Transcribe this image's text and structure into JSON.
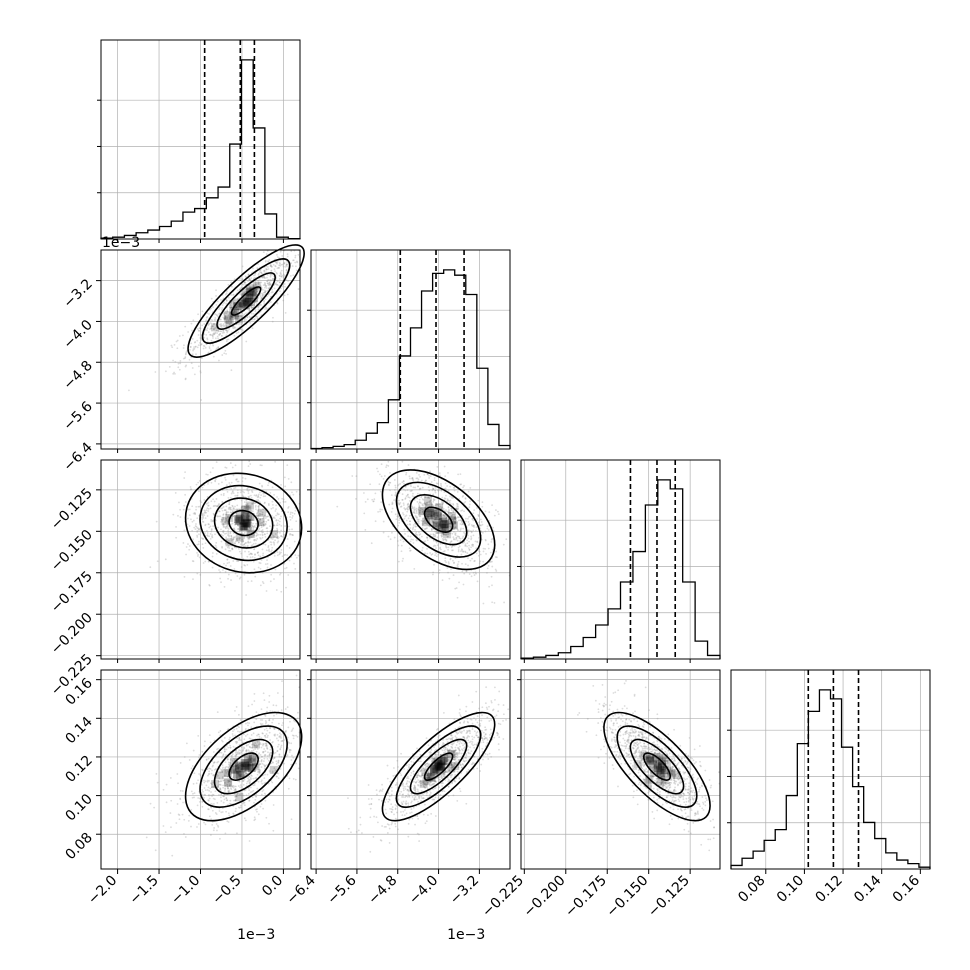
{
  "chart_data": {
    "type": "corner",
    "title": "",
    "parameters": [
      {
        "name": "",
        "range": [
          -0.0022,
          0.0002
        ],
        "ticks": [
          -2.0,
          -1.5,
          -1.0,
          -0.5,
          0.0
        ],
        "tick_labels": [
          "−2.0",
          "−1.5",
          "−1.0",
          "−0.5",
          "0.0"
        ],
        "offset_text": "1e−3",
        "quantiles": [
          -0.00095,
          -0.00052,
          -0.00035
        ]
      },
      {
        "name": "",
        "range": [
          -0.0065,
          -0.0026
        ],
        "ticks": [
          -6.4,
          -5.6,
          -4.8,
          -4.0,
          -3.2
        ],
        "tick_labels": [
          "−6.4",
          "−5.6",
          "−4.8",
          "−4.0",
          "−3.2"
        ],
        "offset_text": "1e−3",
        "quantiles": [
          -0.00475,
          -0.00405,
          -0.0035
        ]
      },
      {
        "name": "",
        "range": [
          -0.227,
          -0.107
        ],
        "ticks": [
          -0.225,
          -0.2,
          -0.175,
          -0.15,
          -0.125
        ],
        "tick_labels": [
          "−0.225",
          "−0.200",
          "−0.175",
          "−0.150",
          "−0.125"
        ],
        "offset_text": "",
        "quantiles": [
          -0.161,
          -0.145,
          -0.134
        ]
      },
      {
        "name": "",
        "range": [
          0.062,
          0.165
        ],
        "ticks": [
          0.08,
          0.1,
          0.12,
          0.14,
          0.16
        ],
        "tick_labels": [
          "0.08",
          "0.10",
          "0.12",
          "0.14",
          "0.16"
        ],
        "offset_text": "",
        "quantiles": [
          0.102,
          0.115,
          0.128
        ]
      }
    ],
    "histograms": [
      [
        0.005,
        0.01,
        0.02,
        0.035,
        0.05,
        0.07,
        0.1,
        0.15,
        0.17,
        0.23,
        0.29,
        0.53,
        1.0,
        0.62,
        0.14,
        0.01,
        0.002
      ],
      [
        0.003,
        0.008,
        0.015,
        0.025,
        0.05,
        0.09,
        0.15,
        0.28,
        0.53,
        0.69,
        0.9,
        1.0,
        1.02,
        0.99,
        0.88,
        0.46,
        0.14,
        0.02
      ],
      [
        0.005,
        0.01,
        0.02,
        0.035,
        0.07,
        0.12,
        0.19,
        0.28,
        0.43,
        0.6,
        0.86,
        1.0,
        0.95,
        0.43,
        0.1,
        0.02
      ],
      [
        0.02,
        0.06,
        0.1,
        0.16,
        0.22,
        0.41,
        0.7,
        0.88,
        1.0,
        0.95,
        0.68,
        0.46,
        0.26,
        0.17,
        0.09,
        0.05,
        0.03,
        0.01
      ]
    ],
    "panels_2d": [
      {
        "x": 0,
        "y": 1,
        "cx": -0.00045,
        "cy": -0.0036,
        "sx": 0.00035,
        "sy": 0.00055,
        "rho": 0.85
      },
      {
        "x": 0,
        "y": 2,
        "cx": -0.00048,
        "cy": -0.145,
        "sx": 0.00035,
        "sy": 0.015,
        "rho": -0.1
      },
      {
        "x": 0,
        "y": 3,
        "cx": -0.00048,
        "cy": 0.115,
        "sx": 0.00035,
        "sy": 0.014,
        "rho": 0.55
      },
      {
        "x": 1,
        "y": 2,
        "cx": -0.004,
        "cy": -0.143,
        "sx": 0.00055,
        "sy": 0.015,
        "rho": -0.5
      },
      {
        "x": 1,
        "y": 3,
        "cx": -0.004,
        "cy": 0.115,
        "sx": 0.00055,
        "sy": 0.014,
        "rho": 0.78
      },
      {
        "x": 2,
        "y": 3,
        "cx": -0.145,
        "cy": 0.115,
        "sx": 0.016,
        "sy": 0.014,
        "rho": -0.72
      }
    ],
    "contour_levels_sigma": [
      0.5,
      1.0,
      1.5,
      2.0
    ],
    "grid": true,
    "legend": "none"
  },
  "colors": {
    "points": "#9a9a9a",
    "lines": "#000000",
    "grid": "#b0b0b0"
  }
}
